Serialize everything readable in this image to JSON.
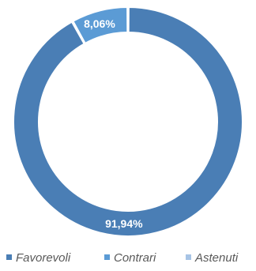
{
  "chart_data": {
    "type": "pie",
    "donut": true,
    "categories": [
      "Favorevoli",
      "Contrari",
      "Astenuti"
    ],
    "values": [
      91.94,
      8.06,
      0
    ],
    "data_labels": [
      "91,94%",
      "8,06%",
      ""
    ],
    "colors": [
      "#4a7eb5",
      "#5b9bd5",
      "#a7c4e5"
    ],
    "legend_position": "bottom",
    "title": ""
  }
}
